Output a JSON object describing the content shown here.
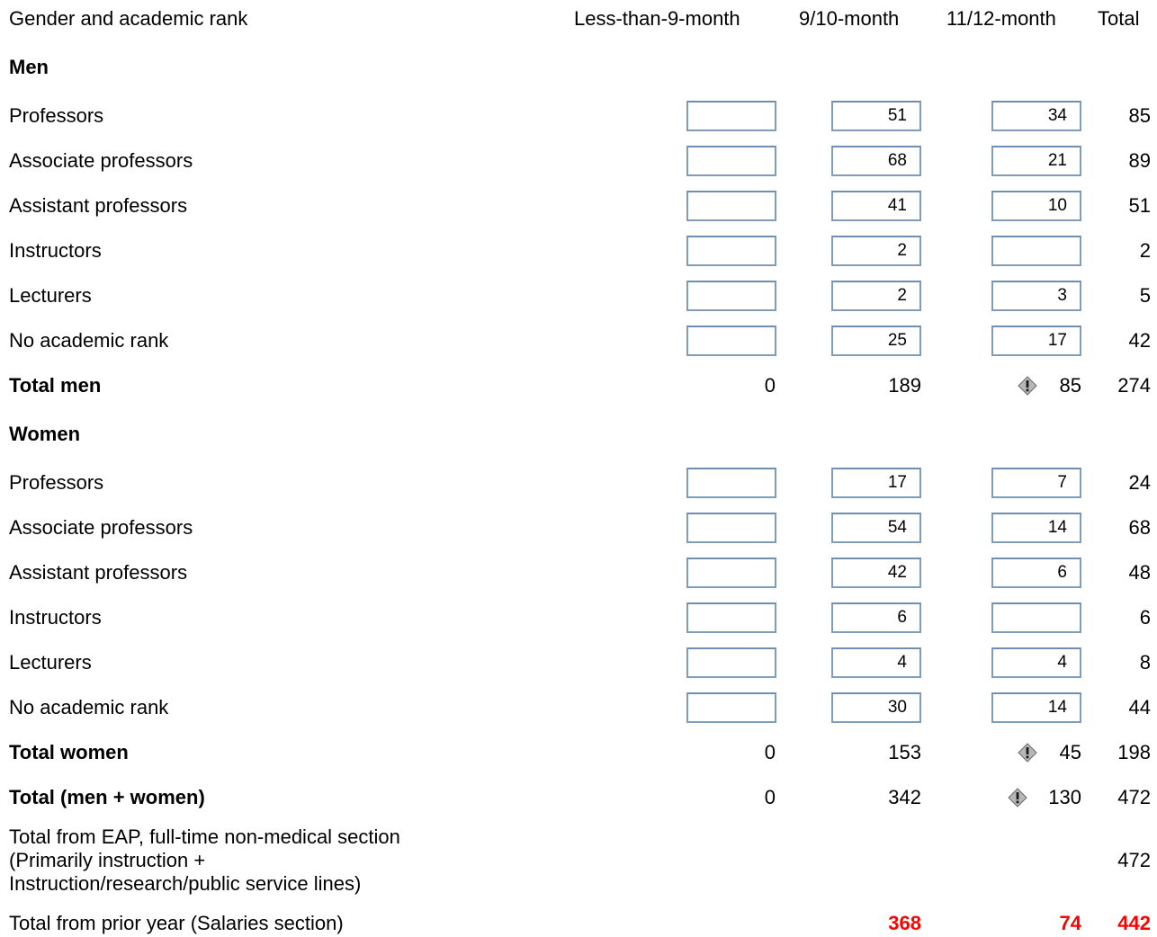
{
  "header": {
    "label_col": "Gender and academic rank",
    "col1": "Less-than-9-month",
    "col2": "9/10-month",
    "col3": "11/12-month",
    "col4": "Total"
  },
  "men": {
    "heading": "Men",
    "rows": [
      {
        "label": "Professors",
        "c1": "",
        "c2": "51",
        "c3": "34",
        "total": "85"
      },
      {
        "label": "Associate professors",
        "c1": "",
        "c2": "68",
        "c3": "21",
        "total": "89"
      },
      {
        "label": "Assistant professors",
        "c1": "",
        "c2": "41",
        "c3": "10",
        "total": "51"
      },
      {
        "label": "Instructors",
        "c1": "",
        "c2": "2",
        "c3": "",
        "total": "2"
      },
      {
        "label": "Lecturers",
        "c1": "",
        "c2": "2",
        "c3": "3",
        "total": "5"
      },
      {
        "label": "No academic rank",
        "c1": "",
        "c2": "25",
        "c3": "17",
        "total": "42"
      }
    ],
    "total": {
      "label": "Total men",
      "c1": "0",
      "c2": "189",
      "c3": "85",
      "total": "274"
    }
  },
  "women": {
    "heading": "Women",
    "rows": [
      {
        "label": "Professors",
        "c1": "",
        "c2": "17",
        "c3": "7",
        "total": "24"
      },
      {
        "label": "Associate professors",
        "c1": "",
        "c2": "54",
        "c3": "14",
        "total": "68"
      },
      {
        "label": "Assistant professors",
        "c1": "",
        "c2": "42",
        "c3": "6",
        "total": "48"
      },
      {
        "label": "Instructors",
        "c1": "",
        "c2": "6",
        "c3": "",
        "total": "6"
      },
      {
        "label": "Lecturers",
        "c1": "",
        "c2": "4",
        "c3": "4",
        "total": "8"
      },
      {
        "label": "No academic rank",
        "c1": "",
        "c2": "30",
        "c3": "14",
        "total": "44"
      }
    ],
    "total": {
      "label": "Total women",
      "c1": "0",
      "c2": "153",
      "c3": "45",
      "total": "198"
    }
  },
  "grand_total": {
    "label": "Total (men + women)",
    "c1": "0",
    "c2": "342",
    "c3": "130",
    "total": "472"
  },
  "eap": {
    "line1": "Total from EAP, full-time non-medical section",
    "line2": "(Primarily instruction +",
    "line3": "Instruction/research/public service lines)",
    "total": "472"
  },
  "prior_year": {
    "label": "Total from prior year (Salaries section)",
    "c2": "368",
    "c3": "74",
    "total": "442"
  },
  "colors": {
    "input_border": "#7f9db9",
    "alert_red": "#ff0000"
  },
  "icons": {
    "warning": "warning-icon"
  }
}
